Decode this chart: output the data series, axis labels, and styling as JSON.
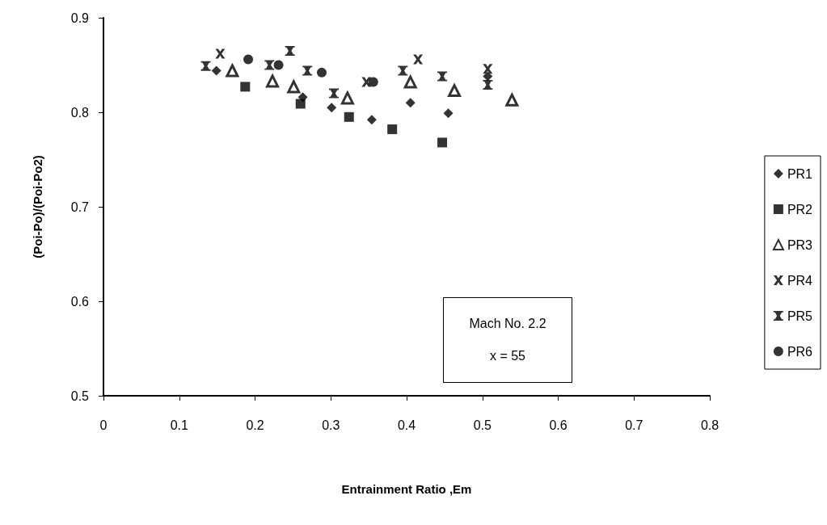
{
  "chart_data": {
    "type": "scatter",
    "xlabel": "Entrainment Ratio ,Em",
    "ylabel": "(Poi-Po)/(Poi-Po2)",
    "xlim": [
      0,
      0.8
    ],
    "xticks": [
      0,
      0.1,
      0.2,
      0.3,
      0.4,
      0.5,
      0.6,
      0.7,
      0.8
    ],
    "ylim": [
      0.5,
      0.9
    ],
    "yticks": [
      0.5,
      0.6,
      0.7,
      0.8,
      0.9
    ],
    "grid": false,
    "legend": "right",
    "annotations": [
      "Mach No. 2.2",
      "x = 55"
    ],
    "series": [
      {
        "name": "PR1",
        "color": "#000000",
        "marker": "diamond",
        "x": [
          0.149,
          0.263,
          0.301,
          0.354,
          0.405,
          0.455,
          0.507
        ],
        "values": [
          0.844,
          0.816,
          0.805,
          0.792,
          0.81,
          0.799,
          0.838
        ]
      },
      {
        "name": "PR2",
        "color": "#000000",
        "marker": "square",
        "x": [
          0.187,
          0.26,
          0.324,
          0.381,
          0.447
        ],
        "values": [
          0.827,
          0.809,
          0.795,
          0.782,
          0.768
        ]
      },
      {
        "name": "PR3",
        "color": "#000000",
        "marker": "triangle",
        "x": [
          0.17,
          0.223,
          0.251,
          0.322,
          0.405,
          0.463,
          0.539
        ],
        "values": [
          0.844,
          0.833,
          0.827,
          0.815,
          0.832,
          0.823,
          0.813
        ]
      },
      {
        "name": "PR4",
        "color": "#000000",
        "marker": "cross",
        "x": [
          0.154,
          0.347,
          0.415,
          0.507
        ],
        "values": [
          0.862,
          0.832,
          0.856,
          0.846
        ]
      },
      {
        "name": "PR5",
        "color": "#000000",
        "marker": "star",
        "x": [
          0.135,
          0.219,
          0.246,
          0.269,
          0.304,
          0.395,
          0.447,
          0.507
        ],
        "values": [
          0.849,
          0.85,
          0.865,
          0.844,
          0.82,
          0.844,
          0.838,
          0.829
        ]
      },
      {
        "name": "PR6",
        "color": "#000000",
        "marker": "circle",
        "x": [
          0.191,
          0.231,
          0.288,
          0.356
        ],
        "values": [
          0.856,
          0.85,
          0.842,
          0.832
        ]
      }
    ]
  }
}
